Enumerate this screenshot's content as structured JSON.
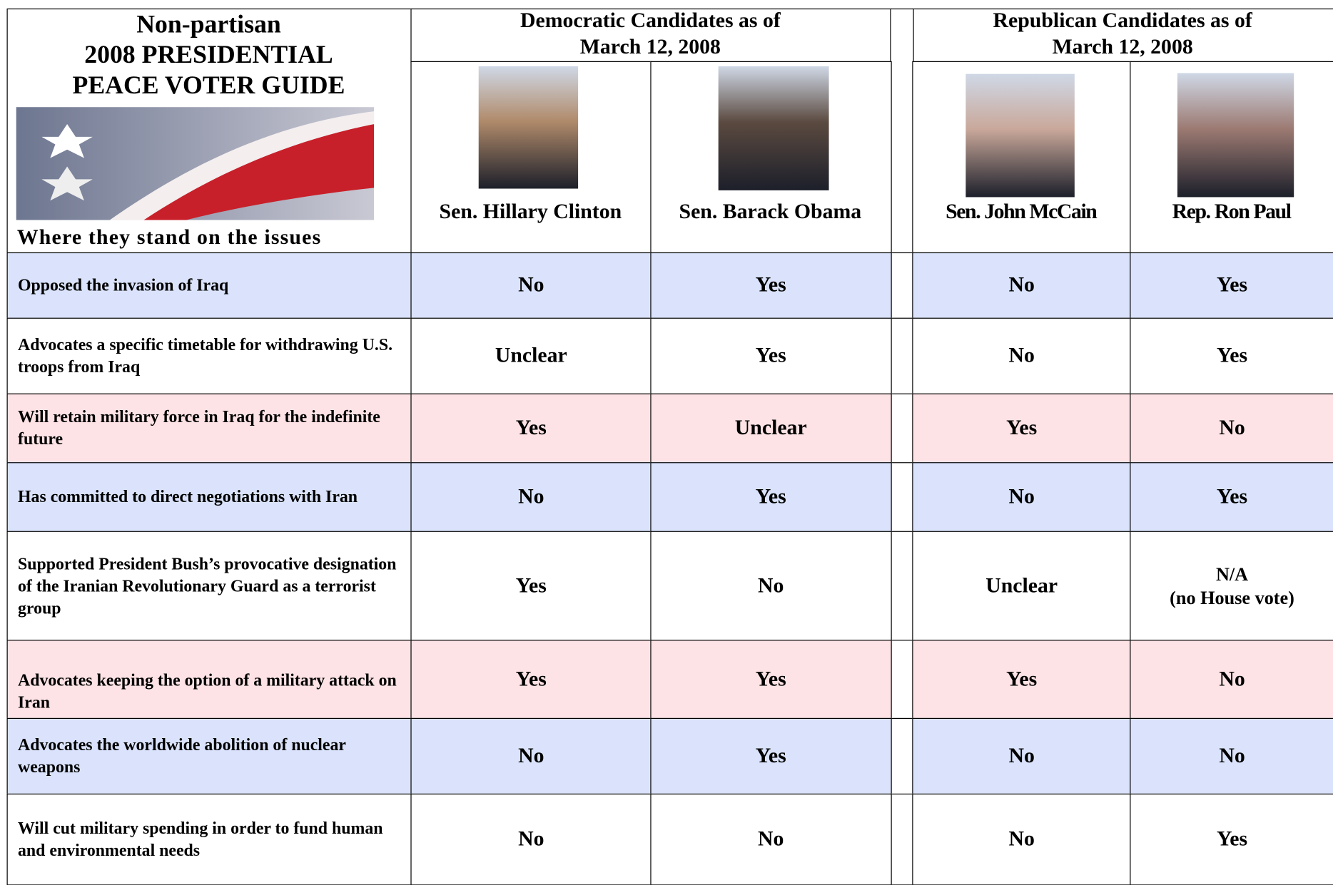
{
  "header": {
    "title_lines": [
      "Non-partisan",
      "2008 PRESIDENTIAL",
      "PEACE VOTER GUIDE"
    ],
    "subtitle": "Where they stand on the issues"
  },
  "groups": [
    {
      "label_lines": [
        "Democratic Candidates as of",
        "March 12, 2008"
      ]
    },
    {
      "label_lines": [
        "Republican Candidates as of",
        "March 12, 2008"
      ]
    }
  ],
  "candidates": [
    "Sen. Hillary Clinton",
    "Sen. Barack Obama",
    "Sen. John McCain",
    "Rep. Ron Paul"
  ],
  "rows": [
    {
      "issue": "Opposed the invasion of Iraq",
      "answers": [
        "No",
        "Yes",
        "No",
        "Yes"
      ],
      "color": "#dae3fb"
    },
    {
      "issue": "Advocates a specific timetable for withdrawing U.S. troops from Iraq",
      "answers": [
        "Unclear",
        "Yes",
        "No",
        "Yes"
      ],
      "color": "#ffffff"
    },
    {
      "issue": "Will retain military force in Iraq for the indefinite future",
      "answers": [
        "Yes",
        "Unclear",
        "Yes",
        "No"
      ],
      "color": "#fde3e5"
    },
    {
      "issue": "Has committed to direct negotiations with Iran",
      "answers": [
        "No",
        "Yes",
        "No",
        "Yes"
      ],
      "color": "#dae3fb"
    },
    {
      "issue": "Supported President Bush’s provocative designation of the Iranian Revolutionary Guard as a terrorist group",
      "answers": [
        "Yes",
        "No",
        "Unclear",
        "N/A\n(no House vote)"
      ],
      "color": "#ffffff"
    },
    {
      "issue": "Advocates keeping the option of a military attack on Iran",
      "answers": [
        "Yes",
        "Yes",
        "Yes",
        "No"
      ],
      "color": "#fde3e5"
    },
    {
      "issue": "Advocates the worldwide abolition of nuclear weapons",
      "answers": [
        "No",
        "Yes",
        "No",
        "No"
      ],
      "color": "#dae3fb"
    },
    {
      "issue": "Will cut military spending in order to fund human and environmental needs",
      "answers": [
        "No",
        "No",
        "No",
        "Yes"
      ],
      "color": "#ffffff"
    }
  ]
}
